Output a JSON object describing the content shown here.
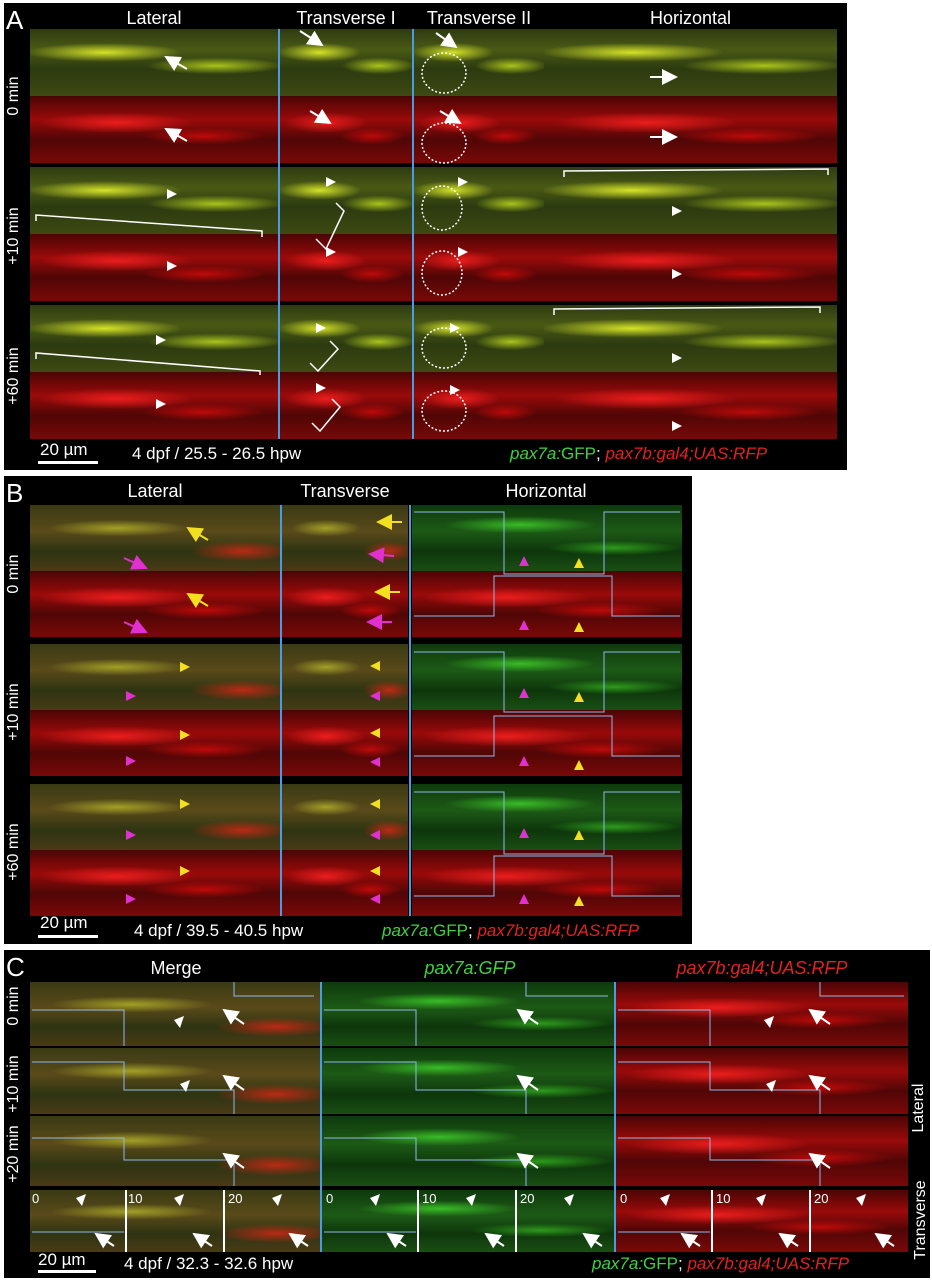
{
  "panel_a": {
    "letter": "A",
    "columns": [
      "Lateral",
      "Transverse I",
      "Transverse II",
      "Horizontal"
    ],
    "rows": [
      "0 min",
      "+10 min",
      "+60 min"
    ],
    "scale": "20 µm",
    "stage": "4 dpf / 25.5 - 26.5 hpw",
    "legend_gfp_gene": "pax7a:",
    "legend_gfp": "GFP",
    "legend_sep": ";",
    "legend_rfp": "pax7b:gal4;UAS:RFP"
  },
  "panel_b": {
    "letter": "B",
    "columns": [
      "Lateral",
      "Transverse",
      "Horizontal"
    ],
    "rows": [
      "0 min",
      "+10 min",
      "+60 min"
    ],
    "scale": "20 µm",
    "stage": "4 dpf / 39.5 - 40.5 hpw",
    "legend_gfp_gene": "pax7a:",
    "legend_gfp": "GFP",
    "legend_sep": ";",
    "legend_rfp": "pax7b:gal4;UAS:RFP"
  },
  "panel_c": {
    "letter": "C",
    "columns": [
      "Merge",
      "pax7a:GFP",
      "pax7b:gal4;UAS:RFP"
    ],
    "rows": [
      "0 min",
      "+10 min",
      "+20 min"
    ],
    "side_labels": [
      "Lateral",
      "Transverse"
    ],
    "time_ticks": [
      "0",
      "10",
      "20"
    ],
    "scale": "20 µm",
    "stage": "4 dpf / 32.3 - 32.6 hpw",
    "legend_gfp_gene": "pax7a:",
    "legend_gfp": "GFP",
    "legend_sep": ";",
    "legend_rfp": "pax7b:gal4;UAS:RFP"
  }
}
